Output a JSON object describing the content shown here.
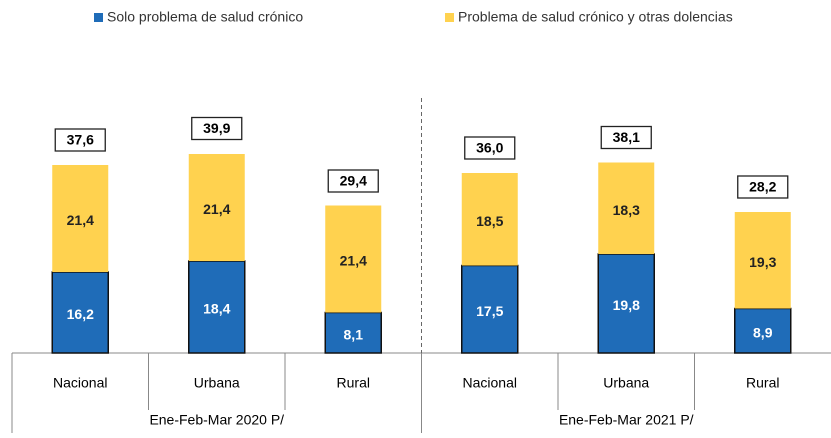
{
  "chart_data": {
    "type": "stacked_bar",
    "categories": [
      "Nacional",
      "Urbana",
      "Rural",
      "Nacional",
      "Urbana",
      "Rural"
    ],
    "groups": [
      "Ene-Feb-Mar 2020 P/",
      "Ene-Feb-Mar 2021 P/"
    ],
    "series": [
      {
        "name": "Solo problema de salud crónico",
        "color": "#1f6cb8",
        "values": [
          16.2,
          18.4,
          8.1,
          17.5,
          19.8,
          8.9
        ],
        "value_labels": [
          "16,2",
          "18,4",
          "8,1",
          "17,5",
          "19,8",
          "8,9"
        ]
      },
      {
        "name": "Problema de salud crónico y otras dolencias",
        "color": "#ffd24f",
        "values": [
          21.4,
          21.4,
          21.4,
          18.5,
          18.3,
          19.3
        ],
        "value_labels": [
          "21,4",
          "21,4",
          "21,4",
          "18,5",
          "18,3",
          "19,3"
        ]
      }
    ],
    "totals": [
      37.6,
      39.9,
      29.4,
      36.0,
      38.1,
      28.2
    ],
    "total_labels": [
      "37,6",
      "39,9",
      "29,4",
      "36,0",
      "38,1",
      "28,2"
    ],
    "ylim": [
      0,
      50
    ]
  }
}
